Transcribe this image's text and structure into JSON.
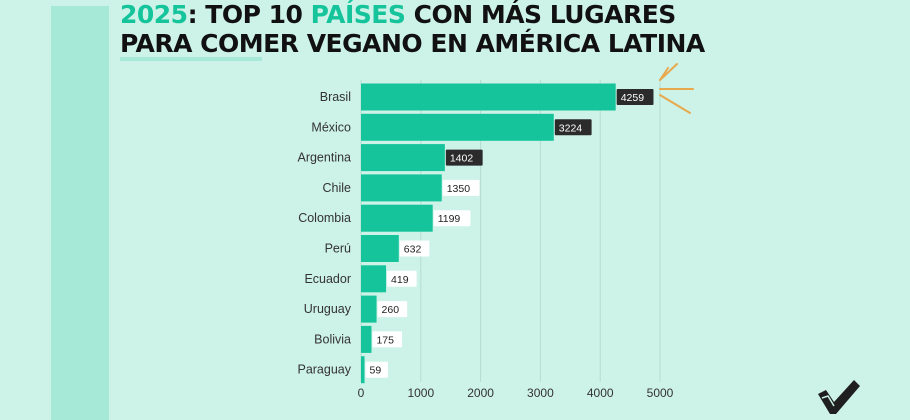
{
  "title": {
    "line1_year": "2025",
    "line1_rest": ": TOP 10 ",
    "line1_accent": "PAÍSES",
    "line1_end": " CON MÁS LUGARES",
    "line2": "PARA COMER VEGANO EN AMÉRICA LATINA"
  },
  "colors": {
    "background": "#cdf2e8",
    "stripe": "#a6e9d7",
    "bar": "#15c49a",
    "accent": "#15c49a",
    "highlight_label": "#2b2b2b",
    "arrow": "#e8a94c"
  },
  "chart_data": {
    "type": "bar",
    "orientation": "horizontal",
    "categories": [
      "Brasil",
      "México",
      "Argentina",
      "Chile",
      "Colombia",
      "Perú",
      "Ecuador",
      "Uruguay",
      "Bolivia",
      "Paraguay"
    ],
    "values": [
      4259,
      3224,
      1402,
      1350,
      1199,
      632,
      419,
      260,
      175,
      59
    ],
    "highlighted": [
      true,
      true,
      true,
      false,
      false,
      false,
      false,
      false,
      false,
      false
    ],
    "xlim": [
      0,
      5000
    ],
    "xticks": [
      0,
      1000,
      2000,
      3000,
      4000,
      5000
    ],
    "grid": true,
    "title": "2025: TOP 10 PAÍSES CON MÁS LUGARES PARA COMER VEGANO EN AMÉRICA LATINA",
    "xlabel": "",
    "ylabel": ""
  },
  "logo_icon": "checkmark-logo-icon",
  "annotation_icon": "arrows-icon"
}
